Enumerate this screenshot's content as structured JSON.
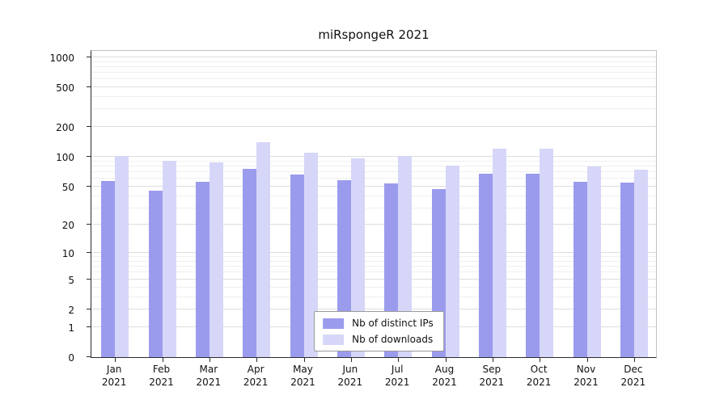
{
  "chart_data": {
    "type": "bar",
    "title": "miRspongeR 2021",
    "xlabel": "",
    "ylabel": "",
    "categories": [
      "Jan",
      "Feb",
      "Mar",
      "Apr",
      "May",
      "Jun",
      "Jul",
      "Aug",
      "Sep",
      "Oct",
      "Nov",
      "Dec"
    ],
    "year_label": "2021",
    "series": [
      {
        "name": "Nb of distinct IPs",
        "color": "#9b9bee",
        "values": [
          57,
          45,
          56,
          75,
          66,
          58,
          54,
          47,
          67,
          67,
          56,
          55
        ]
      },
      {
        "name": "Nb of downloads",
        "color": "#d6d6f8",
        "values": [
          103,
          92,
          88,
          140,
          111,
          96,
          102,
          82,
          122,
          120,
          80,
          74
        ]
      }
    ],
    "y_ticks": [
      0,
      1,
      2,
      5,
      10,
      20,
      50,
      100,
      200,
      500,
      1000
    ],
    "ylim": [
      0,
      1000
    ],
    "y_scale": "log1p",
    "grid": true,
    "legend_position": "bottom-center"
  }
}
